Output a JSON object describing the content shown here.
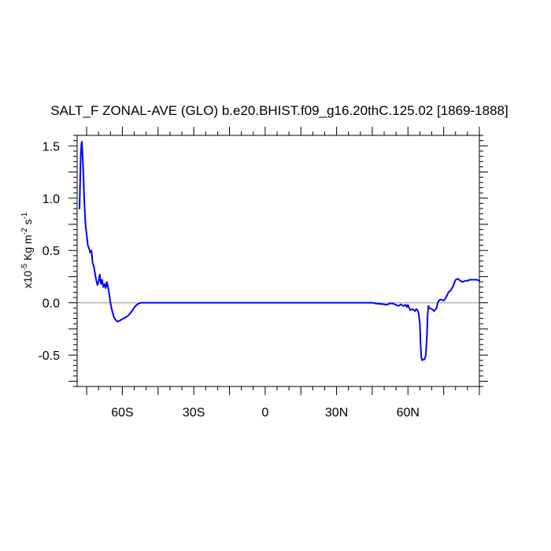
{
  "chart_data": {
    "type": "line",
    "title": "SALT_F ZONAL-AVE (GLO) b.e20.BHIST.f09_g16.20thC.125.02 [1869-1888]",
    "ylabel": {
      "scale_base": "x10",
      "scale_exp": "-5",
      "unit": " Kg m",
      "unit_exp1": "-2",
      "unit_mid": " s",
      "unit_exp2": "-1"
    },
    "xlim": [
      -79,
      90
    ],
    "ylim": [
      -0.8,
      1.6
    ],
    "x_ticks": [
      {
        "value": -60,
        "label": "60S"
      },
      {
        "value": -30,
        "label": "30S"
      },
      {
        "value": 0,
        "label": "0"
      },
      {
        "value": 30,
        "label": "30N"
      },
      {
        "value": 60,
        "label": "60N"
      }
    ],
    "y_ticks": [
      {
        "value": 1.5,
        "label": "1.5"
      },
      {
        "value": 1.0,
        "label": "1.0"
      },
      {
        "value": 0.5,
        "label": "0.5"
      },
      {
        "value": 0.0,
        "label": "0.0"
      },
      {
        "value": -0.5,
        "label": "-0.5"
      }
    ],
    "reference_line": 0,
    "line_color": "#0000ff",
    "reference_color": "#a0a0a0",
    "series": [
      {
        "x": [
          -78.0,
          -77.5,
          -77.2,
          -77.0,
          -76.5,
          -76.0,
          -75.5,
          -75.0,
          -74.5,
          -74.0,
          -73.5,
          -73.0,
          -72.5,
          -72.0,
          -71.5,
          -71.0,
          -70.5,
          -70.0,
          -69.5,
          -69.0,
          -68.5,
          -68.0,
          -67.5,
          -67.0,
          -66.5,
          -66.0,
          -65.5,
          -65.0,
          -64.5,
          -64.0,
          -63.5,
          -63.0,
          -62.5,
          -62.0,
          -61.5,
          -61.0,
          -60.0,
          -59.0,
          -58.0,
          -57.0,
          -56.0,
          -55.0,
          -54.0,
          -53.0,
          -52.0,
          -51.0,
          -50.0,
          -40.0,
          -20.0,
          0.0,
          20.0,
          40.0,
          45.0,
          46.0,
          48.0,
          50.0,
          51.0,
          52.0,
          53.0,
          54.0,
          55.0,
          56.0,
          57.0,
          58.0,
          59.0,
          59.5,
          60.0,
          60.5,
          61.0,
          62.0,
          63.0,
          63.5,
          64.0,
          64.5,
          65.0,
          65.3,
          65.6,
          66.0,
          66.5,
          67.0,
          67.5,
          68.0,
          68.3,
          68.6,
          69.0,
          70.0,
          71.0,
          72.0,
          72.5,
          73.0,
          73.5,
          74.0,
          75.0,
          76.0,
          77.0,
          78.0,
          79.0,
          80.0,
          81.0,
          82.0,
          83.0,
          84.0,
          85.0,
          86.0,
          87.0,
          88.0,
          89.0,
          90.0
        ],
        "y": [
          0.9,
          1.4,
          1.52,
          1.54,
          1.3,
          0.98,
          0.75,
          0.65,
          0.55,
          0.52,
          0.48,
          0.5,
          0.38,
          0.35,
          0.28,
          0.22,
          0.17,
          0.2,
          0.27,
          0.18,
          0.22,
          0.15,
          0.18,
          0.14,
          0.2,
          0.15,
          0.08,
          0.0,
          -0.06,
          -0.1,
          -0.14,
          -0.16,
          -0.17,
          -0.18,
          -0.175,
          -0.17,
          -0.155,
          -0.145,
          -0.13,
          -0.11,
          -0.08,
          -0.045,
          -0.02,
          -0.005,
          0.0,
          0.0,
          0.0,
          0.0,
          0.0,
          0.0,
          0.0,
          0.0,
          0.0,
          -0.005,
          -0.01,
          -0.015,
          -0.02,
          -0.01,
          -0.005,
          -0.01,
          -0.02,
          -0.03,
          -0.015,
          -0.03,
          -0.02,
          -0.04,
          -0.02,
          -0.05,
          -0.07,
          -0.06,
          -0.08,
          -0.06,
          -0.07,
          -0.1,
          -0.2,
          -0.4,
          -0.52,
          -0.55,
          -0.54,
          -0.54,
          -0.5,
          -0.3,
          -0.1,
          -0.03,
          -0.05,
          -0.06,
          -0.08,
          -0.05,
          0.0,
          0.02,
          0.03,
          0.03,
          0.02,
          0.05,
          0.1,
          0.12,
          0.16,
          0.22,
          0.23,
          0.21,
          0.2,
          0.21,
          0.21,
          0.22,
          0.22,
          0.22,
          0.22,
          0.21
        ]
      }
    ]
  }
}
